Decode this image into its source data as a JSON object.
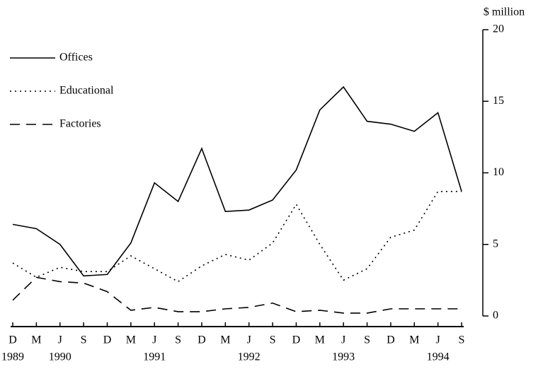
{
  "chart_data": {
    "type": "line",
    "y_axis_label": "$ million",
    "categories": [
      "D",
      "M",
      "J",
      "S",
      "D",
      "M",
      "J",
      "S",
      "D",
      "M",
      "J",
      "S",
      "D",
      "M",
      "J",
      "S",
      "D",
      "M",
      "J",
      "S"
    ],
    "category_years": [
      "1989",
      null,
      "1990",
      null,
      null,
      null,
      "1991",
      null,
      null,
      null,
      "1992",
      null,
      null,
      null,
      "1993",
      null,
      null,
      null,
      "1994",
      null
    ],
    "series": [
      {
        "name": "Offices",
        "color": "#000000",
        "style": "solid",
        "values": [
          6.4,
          6.1,
          5.0,
          2.8,
          2.9,
          5.1,
          9.3,
          8.0,
          11.7,
          7.3,
          7.4,
          8.1,
          10.2,
          14.4,
          16.0,
          13.6,
          13.4,
          12.9,
          14.2,
          8.7
        ]
      },
      {
        "name": "Educational",
        "color": "#000000",
        "style": "dotted",
        "values": [
          3.7,
          2.7,
          3.4,
          3.1,
          3.1,
          4.2,
          3.3,
          2.4,
          3.5,
          4.3,
          3.9,
          5.1,
          7.8,
          5.0,
          2.5,
          3.3,
          5.5,
          6.0,
          8.7,
          8.7
        ]
      },
      {
        "name": "Factories",
        "color": "#000000",
        "style": "dashed",
        "values": [
          1.1,
          2.7,
          2.4,
          2.3,
          1.7,
          0.4,
          0.6,
          0.3,
          0.3,
          0.5,
          0.6,
          0.9,
          0.3,
          0.4,
          0.2,
          0.2,
          0.5,
          0.5,
          0.5,
          0.5
        ]
      }
    ],
    "ylim": [
      0,
      20
    ],
    "yticks": [
      0,
      5,
      10,
      15,
      20
    ],
    "y_axis_side": "right",
    "legend": "upper left"
  }
}
